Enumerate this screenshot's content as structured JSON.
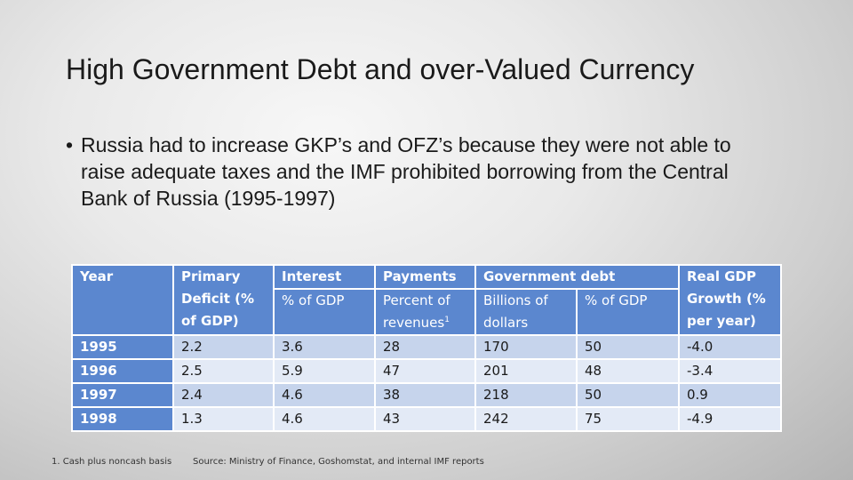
{
  "slide": {
    "title": "High Government Debt and over-Valued Currency",
    "bullet": "Russia had to increase GKP’s and OFZ’s because they were not able to raise adequate taxes and the IMF prohibited borrowing from the Central Bank of Russia (1995-1997)",
    "bullet_marker": "•"
  },
  "table": {
    "headers": {
      "year": "Year",
      "primary_deficit": "Primary Deficit (% of GDP)",
      "interest": "Interest",
      "interest_sub": "% of GDP",
      "payments": "Payments",
      "payments_sub": "Percent of revenues",
      "payments_footnote": "1",
      "government_debt": "Government debt",
      "debt_billions_sub": "Billions of dollars",
      "debt_pct_sub": "% of GDP",
      "real_gdp": "Real GDP Growth (% per year)"
    },
    "rows": [
      {
        "year": "1995",
        "primary_deficit": "2.2",
        "interest": "3.6",
        "payments": "28",
        "debt_billions": "170",
        "debt_pct": "50",
        "real_gdp": "-4.0"
      },
      {
        "year": "1996",
        "primary_deficit": "2.5",
        "interest": "5.9",
        "payments": "47",
        "debt_billions": "201",
        "debt_pct": "48",
        "real_gdp": "-3.4"
      },
      {
        "year": "1997",
        "primary_deficit": "2.4",
        "interest": "4.6",
        "payments": "38",
        "debt_billions": "218",
        "debt_pct": "50",
        "real_gdp": "0.9"
      },
      {
        "year": "1998",
        "primary_deficit": "1.3",
        "interest": "4.6",
        "payments": "43",
        "debt_billions": "242",
        "debt_pct": "75",
        "real_gdp": "-4.9"
      }
    ]
  },
  "footnotes": {
    "note": "1. Cash plus noncash basis",
    "source": "Source: Ministry of Finance, Goshomstat, and internal IMF reports"
  },
  "colors": {
    "header_blue": "#5b87cf",
    "row_dark": "#c6d4ec",
    "row_light": "#e3eaf6"
  }
}
